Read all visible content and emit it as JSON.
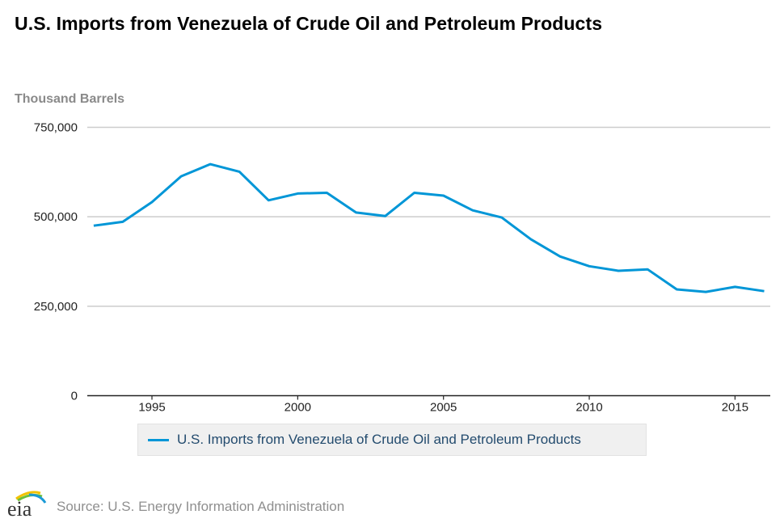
{
  "header": {
    "title": "U.S. Imports from Venezuela of Crude Oil and Petroleum Products"
  },
  "colors": {
    "series_line": "#0096d7",
    "gridline": "#cccccc",
    "axis": "#222222",
    "legend_text": "#234b6e",
    "y_axis_title": "#8a8a8a",
    "source_text": "#8f8f8f"
  },
  "legend": {
    "items": [
      {
        "label": "U.S. Imports from Venezuela of Crude Oil and Petroleum Products",
        "color": "#0096d7"
      }
    ]
  },
  "footer": {
    "logo_text": "eia",
    "logo_icon": "eia-logo-icon",
    "source": "Source: U.S. Energy Information Administration"
  },
  "chart_data": {
    "type": "line",
    "title": "U.S. Imports from Venezuela of Crude Oil and Petroleum Products",
    "xlabel": "",
    "ylabel": "Thousand Barrels",
    "xlim": [
      1993,
      2016
    ],
    "ylim": [
      0,
      750000
    ],
    "grid": true,
    "legend_position": "bottom",
    "x_ticks": [
      1995,
      2000,
      2005,
      2010,
      2015
    ],
    "x_tick_labels": [
      "1995",
      "2000",
      "2005",
      "2010",
      "2015"
    ],
    "y_ticks": [
      0,
      250000,
      500000,
      750000
    ],
    "y_tick_labels": [
      "0",
      "250,000",
      "500,000",
      "750,000"
    ],
    "x": [
      1993,
      1994,
      1995,
      1996,
      1997,
      1998,
      1999,
      2000,
      2001,
      2002,
      2003,
      2004,
      2005,
      2006,
      2007,
      2008,
      2009,
      2010,
      2011,
      2012,
      2013,
      2014,
      2015,
      2016
    ],
    "series": [
      {
        "name": "U.S. Imports from Venezuela of Crude Oil and Petroleum Products",
        "values": [
          475000,
          486000,
          541000,
          613000,
          647000,
          626000,
          546000,
          565000,
          567000,
          512000,
          502000,
          567000,
          559000,
          518000,
          498000,
          437000,
          389000,
          362000,
          349000,
          353000,
          297000,
          290000,
          304000,
          292000
        ]
      }
    ]
  }
}
